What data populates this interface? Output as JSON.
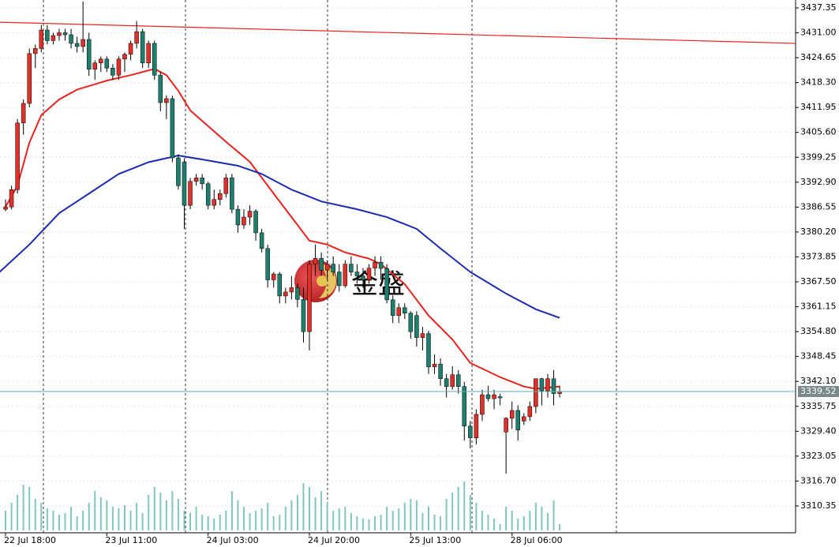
{
  "chart_data": {
    "type": "candlestick",
    "watermark": "金盛",
    "xlim": [
      -0.93,
      132.6
    ],
    "ylim": [
      3303.5,
      3439.36
    ],
    "xticks": [
      {
        "value": 0,
        "label": "22 Jul 18:00"
      },
      {
        "value": 17,
        "label": "23 Jul 11:00"
      },
      {
        "value": 34,
        "label": "24 Jul 03:00"
      },
      {
        "value": 51,
        "label": "24 Jul 20:00"
      },
      {
        "value": 68,
        "label": "25 Jul 13:00"
      },
      {
        "value": 85,
        "label": "28 Jul 06:00"
      }
    ],
    "yticks": [
      3437.35,
      {
        "value": 3431,
        "label": "3431.00"
      },
      3424.65,
      {
        "value": 3418.3,
        "label": "3418.30"
      },
      3411.95,
      {
        "value": 3405.6,
        "label": "3405.60"
      },
      3399.25,
      {
        "value": 3392.9,
        "label": "3392.90"
      },
      3386.55,
      {
        "value": 3380.2,
        "label": "3380.20"
      },
      3373.85,
      {
        "value": 3367.5,
        "label": "3367.50"
      },
      3361.15,
      {
        "value": 3354.8,
        "label": "3354.80"
      },
      3348.45,
      {
        "value": 3342.1,
        "label": "3342.10"
      },
      3335.75,
      {
        "value": 3329.4,
        "label": "3329.40"
      },
      3323.05,
      {
        "value": 3316.7,
        "label": "3316.70"
      },
      3310.35
    ],
    "grid": true,
    "up_color": "#e0302a",
    "down_color": "#1f7f6e",
    "volume_color": "#7fc7bd",
    "candles": [
      [
        3386.0,
        3388.5,
        3385.5,
        3386.6
      ],
      [
        3386.6,
        3392,
        3386,
        3391
      ],
      [
        3391,
        3409,
        3390,
        3408
      ],
      [
        3408,
        3414,
        3405,
        3413
      ],
      [
        3413,
        3427,
        3412,
        3425.7
      ],
      [
        3425.7,
        3428,
        3422,
        3427
      ],
      [
        3427,
        3433,
        3426,
        3431.7
      ],
      [
        3431.7,
        3433,
        3428,
        3429
      ],
      [
        3429,
        3431,
        3428,
        3430.3
      ],
      [
        3430.3,
        3432,
        3429,
        3431
      ],
      [
        3431,
        3432,
        3429,
        3430.5
      ],
      [
        3430.5,
        3432,
        3427,
        3428.3
      ],
      [
        3428.3,
        3430,
        3426,
        3427.5
      ],
      [
        3427.5,
        3439,
        3426,
        3429.3
      ],
      [
        3429.3,
        3431,
        3420,
        3421.7
      ],
      [
        3421.7,
        3424,
        3419,
        3423.3
      ],
      [
        3423.3,
        3425,
        3421,
        3424.3
      ],
      [
        3424.3,
        3425,
        3421,
        3422
      ],
      [
        3422,
        3423,
        3419,
        3420.2
      ],
      [
        3420.2,
        3425,
        3419,
        3424.3
      ],
      [
        3424.3,
        3426,
        3421,
        3425.5
      ],
      [
        3425.5,
        3429,
        3424,
        3428.3
      ],
      [
        3428.3,
        3434,
        3427,
        3431.3
      ],
      [
        3431.3,
        3432,
        3422,
        3423.3
      ],
      [
        3423.3,
        3429,
        3422,
        3428.3
      ],
      [
        3428.3,
        3429,
        3419,
        3420.2
      ],
      [
        3420.2,
        3421,
        3411,
        3413.2
      ],
      [
        3413.2,
        3415,
        3409,
        3414.2
      ],
      [
        3414.2,
        3415,
        3398,
        3399.1
      ],
      [
        3399.1,
        3400,
        3391,
        3392
      ],
      [
        3398,
        3399,
        3381,
        3387
      ],
      [
        3387,
        3394,
        3386,
        3393.1
      ],
      [
        3393.1,
        3395,
        3392,
        3394
      ],
      [
        3394,
        3395,
        3391,
        3392.5
      ],
      [
        3392.5,
        3393,
        3386,
        3387
      ],
      [
        3387,
        3391,
        3386,
        3388.5
      ],
      [
        3388.5,
        3391,
        3387,
        3390
      ],
      [
        3390,
        3395,
        3389,
        3394
      ],
      [
        3394,
        3395,
        3385,
        3386
      ],
      [
        3386,
        3387,
        3380,
        3382
      ],
      [
        3382,
        3386,
        3381,
        3384
      ],
      [
        3384,
        3387,
        3382,
        3385.5
      ],
      [
        3385.5,
        3386,
        3378,
        3380
      ],
      [
        3380,
        3381,
        3375,
        3376
      ],
      [
        3376,
        3377,
        3366,
        3368
      ],
      [
        3368,
        3370,
        3366,
        3369.5
      ],
      [
        3369.5,
        3370,
        3362,
        3363.9
      ],
      [
        3363.9,
        3366,
        3362,
        3364.9
      ],
      [
        3364.9,
        3369,
        3363,
        3366
      ],
      [
        3366,
        3367,
        3361,
        3363
      ],
      [
        3363,
        3366,
        3352,
        3354.8
      ],
      [
        3354.8,
        3373,
        3350,
        3372
      ],
      [
        3372,
        3377,
        3369,
        3373.5
      ],
      [
        3373.5,
        3375,
        3369,
        3370.5
      ],
      [
        3370.5,
        3373,
        3368,
        3372
      ],
      [
        3372,
        3374,
        3369,
        3370
      ],
      [
        3370,
        3372,
        3365,
        3366.5
      ],
      [
        3366.5,
        3373,
        3366,
        3372
      ],
      [
        3372,
        3374,
        3369,
        3370
      ],
      [
        3370,
        3372,
        3367,
        3369
      ],
      [
        3369,
        3371,
        3366,
        3368
      ],
      [
        3368,
        3372,
        3367,
        3371
      ],
      [
        3371,
        3374,
        3369,
        3372.5
      ],
      [
        3372.5,
        3374,
        3368,
        3370.9
      ],
      [
        3370.9,
        3372,
        3362,
        3362.9
      ],
      [
        3362.9,
        3364,
        3357,
        3358.9
      ],
      [
        3358.9,
        3362,
        3357,
        3360.9
      ],
      [
        3360.9,
        3362,
        3358,
        3359.5
      ],
      [
        3359.5,
        3360,
        3353,
        3354.8
      ],
      [
        3358.9,
        3360,
        3351,
        3353.3
      ],
      [
        3353.3,
        3356,
        3350,
        3354.3
      ],
      [
        3354.3,
        3355,
        3344,
        3345.8
      ],
      [
        3345.8,
        3349,
        3344,
        3346.5
      ],
      [
        3346.5,
        3348,
        3341,
        3342.8
      ],
      [
        3342.8,
        3344,
        3338,
        3340.8
      ],
      [
        3340.8,
        3346,
        3340,
        3343.8
      ],
      [
        3343.8,
        3345,
        3339,
        3340.8
      ],
      [
        3340.8,
        3342,
        3327,
        3330.7
      ],
      [
        3330.7,
        3332,
        3325,
        3327.7
      ],
      [
        3327.7,
        3335,
        3326,
        3333.7
      ],
      [
        3333.7,
        3340,
        3332,
        3338.7
      ],
      [
        3338.7,
        3341,
        3337,
        3337.7
      ],
      [
        3337.7,
        3340,
        3335,
        3338.7
      ],
      [
        3338.2,
        3339,
        3336,
        3337.9
      ],
      [
        3329.2,
        3333,
        3318.6,
        3332.7
      ],
      [
        3332.7,
        3337,
        3330,
        3334.7
      ],
      [
        3334.7,
        3336,
        3327,
        3329.7
      ],
      [
        3332,
        3334,
        3331,
        3333.1
      ],
      [
        3333.1,
        3337,
        3332,
        3335.7
      ],
      [
        3335.7,
        3342,
        3334,
        3342.8
      ],
      [
        3342.8,
        3343,
        3336,
        3339.7
      ],
      [
        3339.7,
        3344,
        3338,
        3342.8
      ],
      [
        3342.8,
        3345,
        3336,
        3339
      ],
      [
        3339,
        3341,
        3338,
        3339.52
      ]
    ],
    "volume": [
      25,
      35,
      45,
      58,
      55,
      40,
      35,
      28,
      25,
      20,
      22,
      30,
      18,
      25,
      35,
      50,
      42,
      38,
      30,
      28,
      32,
      25,
      35,
      22,
      45,
      55,
      48,
      38,
      50,
      40,
      25,
      22,
      30,
      20,
      18,
      15,
      20,
      25,
      50,
      38,
      30,
      22,
      25,
      28,
      35,
      18,
      20,
      30,
      38,
      45,
      60,
      55,
      42,
      50,
      35,
      25,
      28,
      30,
      22,
      18,
      15,
      14,
      18,
      20,
      30,
      25,
      28,
      35,
      40,
      38,
      22,
      30,
      20,
      18,
      40,
      48,
      55,
      62,
      45,
      35,
      25,
      20,
      15,
      8,
      30,
      25,
      15,
      18,
      25,
      35,
      30,
      22,
      38,
      8
    ],
    "lines": [
      {
        "color": "#e8231d",
        "x": [
          0,
          2,
          4,
          6,
          9,
          12,
          17,
          21,
          25,
          27,
          29,
          31,
          34,
          37,
          41,
          45,
          49,
          51,
          54,
          57,
          61,
          63,
          67,
          71,
          75,
          78,
          83,
          87,
          89,
          93
        ],
        "values": [
          3386.6,
          3392,
          3403,
          3410,
          3414,
          3416.5,
          3418.8,
          3420.2,
          3421.8,
          3420.2,
          3416.2,
          3411.2,
          3407.2,
          3403.2,
          3398.1,
          3390,
          3382,
          3378,
          3377,
          3375,
          3373.4,
          3372,
          3366.9,
          3358.9,
          3352.8,
          3346.8,
          3343.2,
          3340.8,
          3340.2,
          3340.8
        ]
      },
      {
        "color": "#1a2bb0",
        "x": [
          -1,
          4,
          9,
          14,
          19,
          24,
          29,
          33,
          39,
          43,
          48,
          53,
          59,
          64,
          69,
          73,
          78,
          84,
          89,
          93
        ],
        "values": [
          3370,
          3377,
          3385,
          3390,
          3395,
          3398,
          3399.7,
          3398.7,
          3397.1,
          3395,
          3391,
          3388,
          3386,
          3384,
          3381,
          3376,
          3370,
          3364.5,
          3360.5,
          3358.3
        ]
      },
      {
        "color": "#e8231d",
        "x": [
          -0.93,
          132.6
        ],
        "values": [
          3433.7,
          3428.3
        ]
      }
    ],
    "last_price": 3339.52,
    "last_price_color": "#5fb3b3"
  }
}
